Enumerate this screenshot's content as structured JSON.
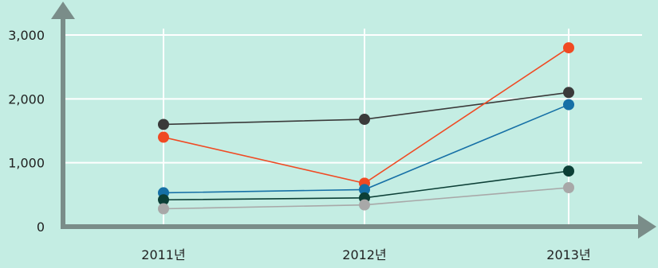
{
  "chart_data": {
    "type": "line",
    "categories": [
      "2011년",
      "2012년",
      "2013년"
    ],
    "y_ticks": [
      "0",
      "1,000",
      "2,000",
      "3,000"
    ],
    "ylim": [
      0,
      3000
    ],
    "grid": true,
    "series": [
      {
        "color": "#3a3a3a",
        "values": [
          1600,
          1680,
          2100
        ]
      },
      {
        "color": "#f04a23",
        "values": [
          1400,
          680,
          2800
        ]
      },
      {
        "color": "#1670a6",
        "values": [
          530,
          580,
          1910
        ]
      },
      {
        "color": "#0c3f36",
        "values": [
          420,
          450,
          870
        ]
      },
      {
        "color": "#a8a8a8",
        "values": [
          280,
          340,
          610
        ]
      }
    ]
  }
}
